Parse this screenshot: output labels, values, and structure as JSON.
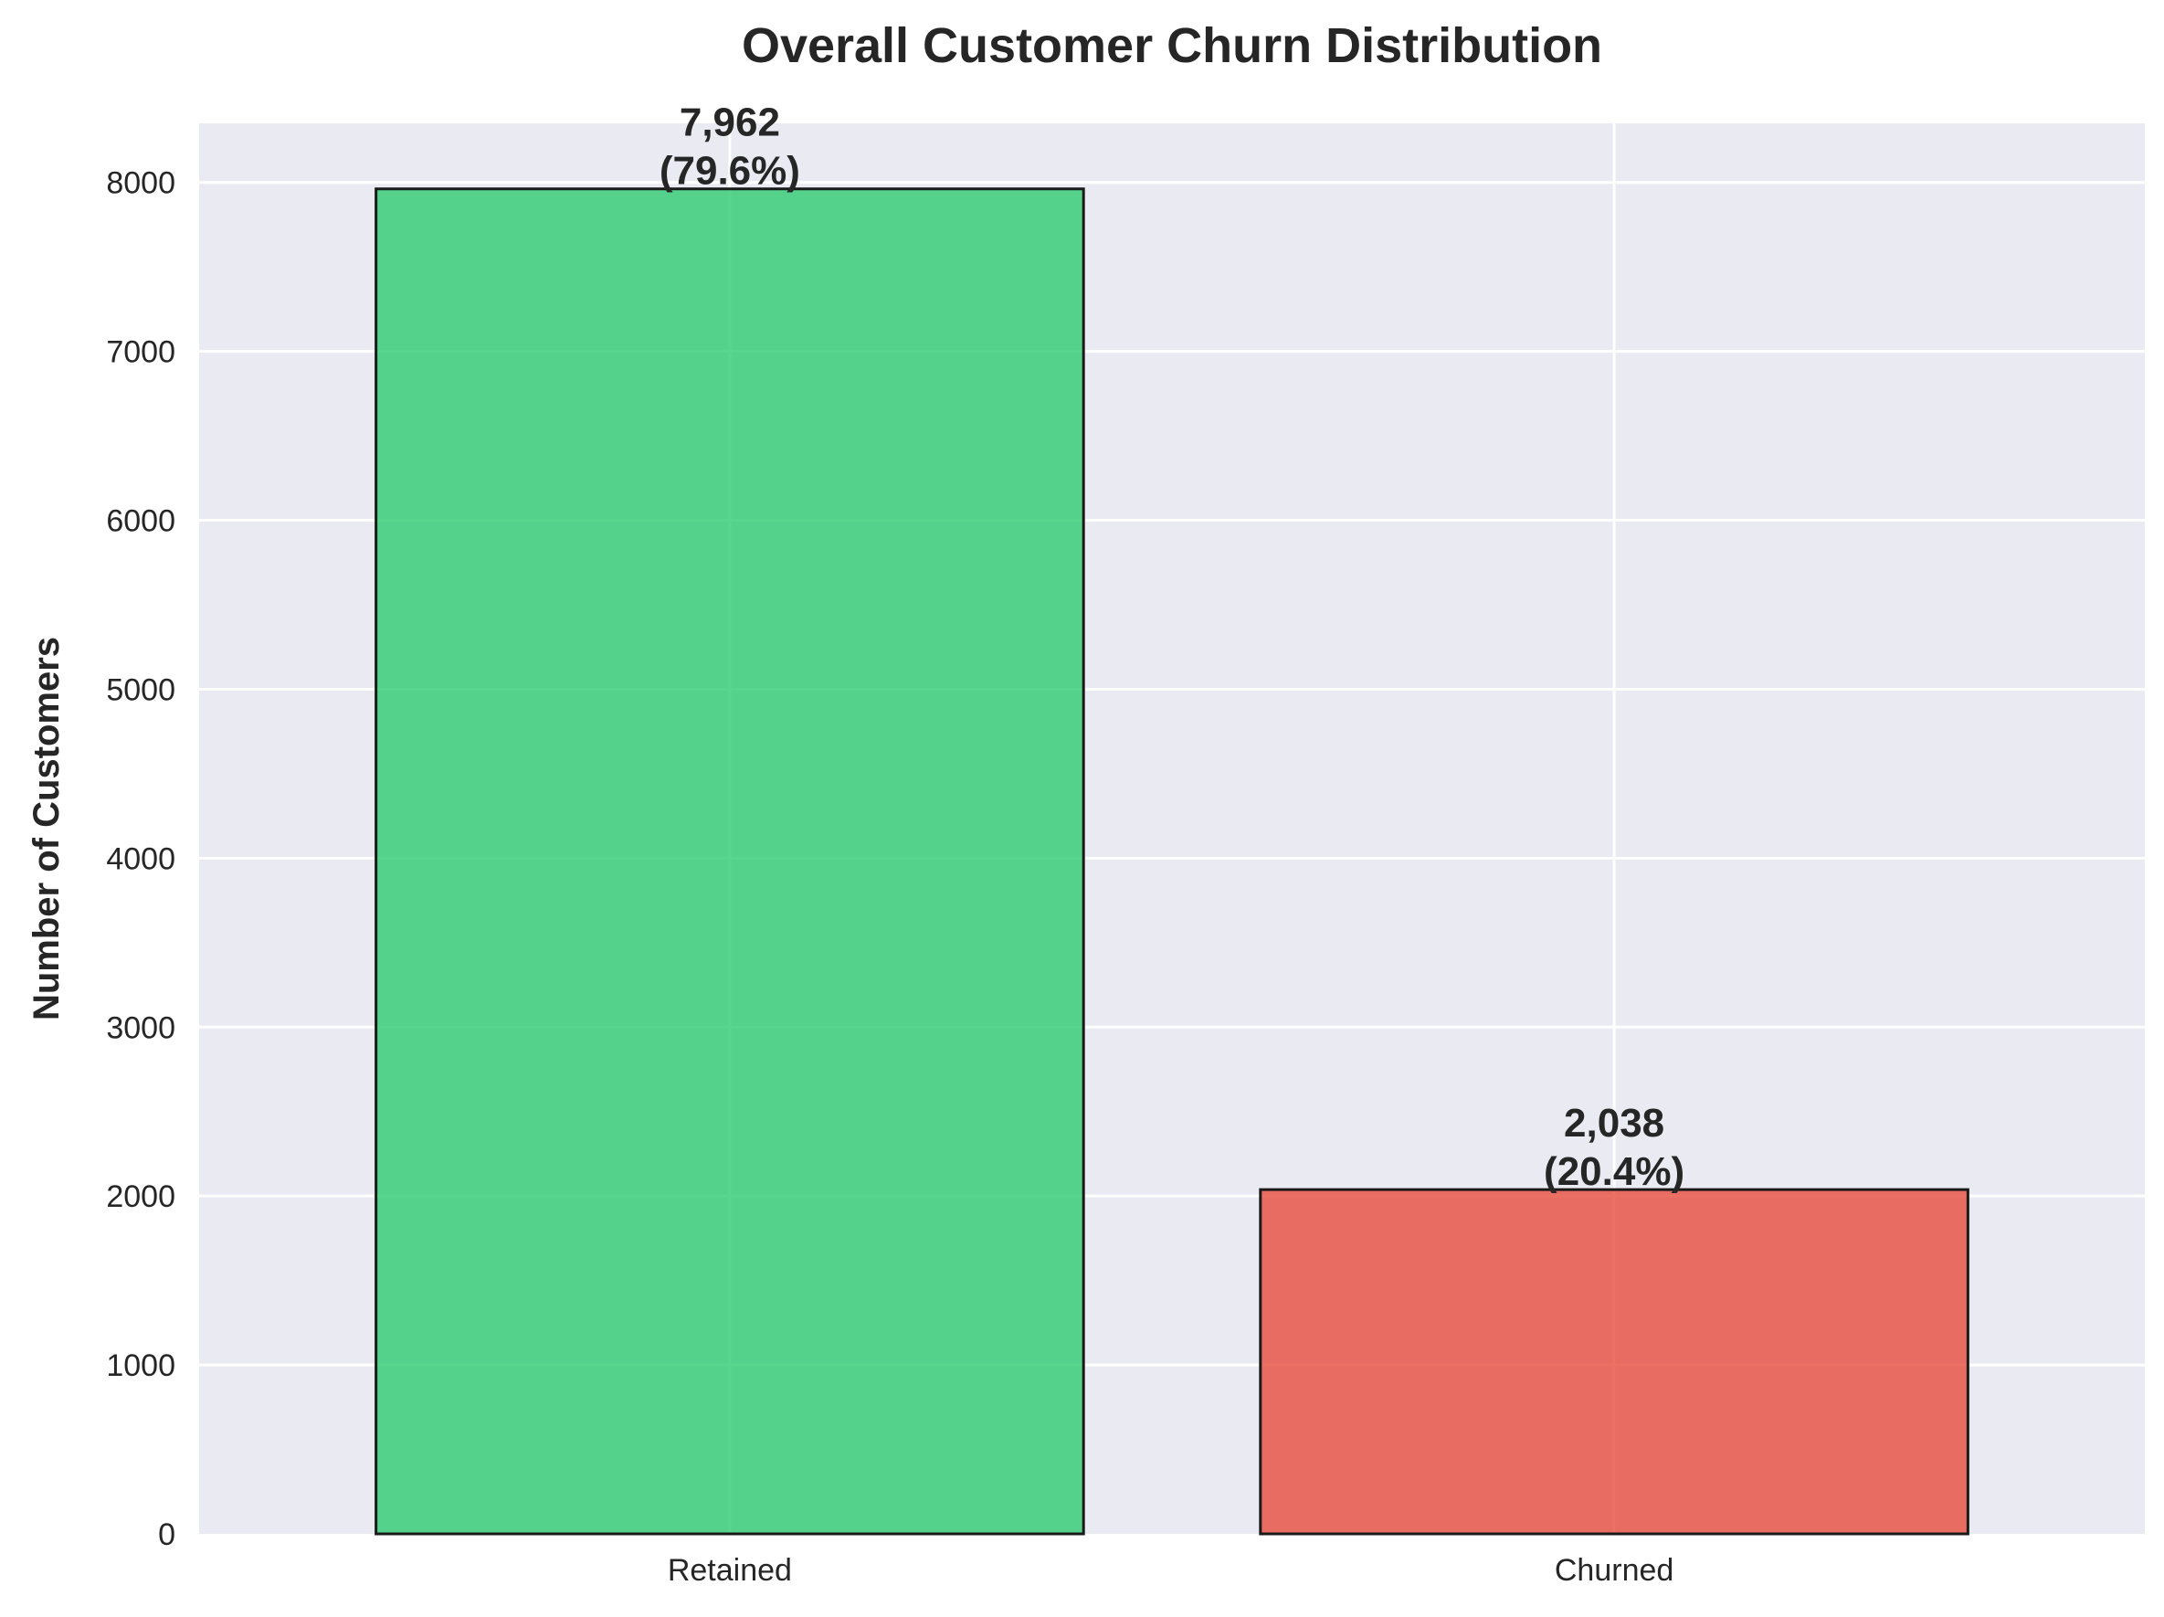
{
  "chart_data": {
    "type": "bar",
    "title": "Overall Customer Churn Distribution",
    "xlabel": "",
    "ylabel": "Number of Customers",
    "categories": [
      "Retained",
      "Churned"
    ],
    "values": [
      7962,
      2038
    ],
    "value_labels": [
      "7,962",
      "2,038"
    ],
    "percent_labels": [
      "(79.6%)",
      "(20.4%)"
    ],
    "colors": [
      "#2ecc71",
      "#e74c3c"
    ],
    "bar_edge_color": "#1a1a1a",
    "plot_background": "#eaeaf2",
    "ylim": [
      0,
      8350
    ],
    "yticks": [
      0,
      1000,
      2000,
      3000,
      4000,
      5000,
      6000,
      7000,
      8000
    ],
    "ytick_labels": [
      "0",
      "1000",
      "2000",
      "3000",
      "4000",
      "5000",
      "6000",
      "7000",
      "8000"
    ],
    "grid": true
  }
}
